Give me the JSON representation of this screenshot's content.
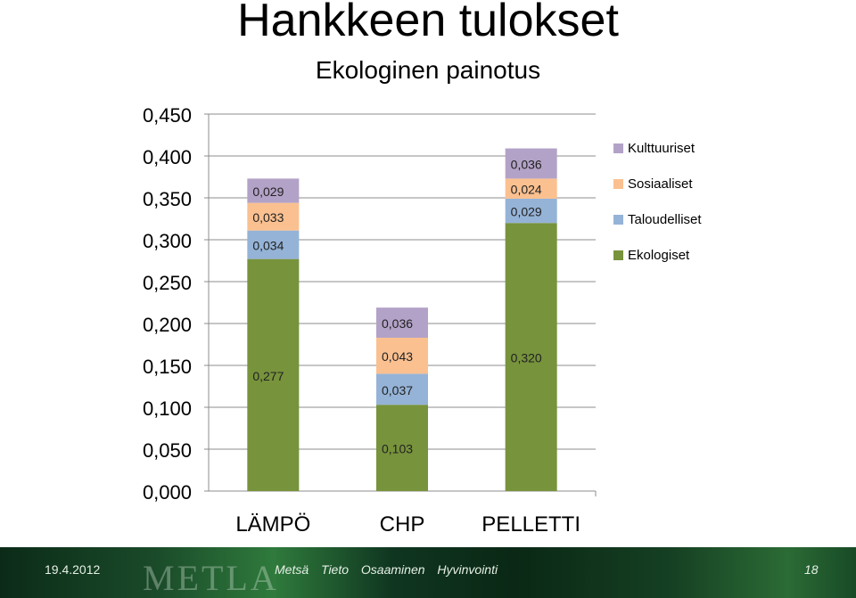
{
  "header": {
    "title": "Hankkeen tulokset",
    "subtitle": "Ekologinen painotus"
  },
  "legend": {
    "items": [
      {
        "label": "Kulttuuriset",
        "color": "#b3a2c7"
      },
      {
        "label": "Sosiaaliset",
        "color": "#fac090"
      },
      {
        "label": "Taloudelliset",
        "color": "#95b3d7"
      },
      {
        "label": "Ekologiset",
        "color": "#77933c"
      }
    ]
  },
  "footer": {
    "date": "19.4.2012",
    "logo": "METLA",
    "nav": [
      "Metsä",
      "Tieto",
      "Osaaminen",
      "Hyvinvointi"
    ],
    "page": "18"
  },
  "chart_data": {
    "type": "bar",
    "stacked": true,
    "title": "Ekologinen painotus",
    "xlabel": "",
    "ylabel": "",
    "ylim": [
      0,
      0.45
    ],
    "ytick_values": [
      0,
      0.05,
      0.1,
      0.15,
      0.2,
      0.25,
      0.3,
      0.35,
      0.4,
      0.45
    ],
    "yticks": [
      "0,000",
      "0,050",
      "0,100",
      "0,150",
      "0,200",
      "0,250",
      "0,300",
      "0,350",
      "0,400",
      "0,450"
    ],
    "grid": true,
    "legend_position": "right",
    "categories": [
      "LÄMPÖ",
      "CHP",
      "PELLETTI"
    ],
    "series": [
      {
        "name": "Ekologiset",
        "color": "#77933c",
        "values": [
          0.277,
          0.103,
          0.32
        ],
        "labels": [
          "0,277",
          "0,103",
          "0,320"
        ]
      },
      {
        "name": "Taloudelliset",
        "color": "#95b3d7",
        "values": [
          0.034,
          0.037,
          0.029
        ],
        "labels": [
          "0,034",
          "0,037",
          "0,029"
        ]
      },
      {
        "name": "Sosiaaliset",
        "color": "#fac090",
        "values": [
          0.033,
          0.043,
          0.024
        ],
        "labels": [
          "0,033",
          "0,043",
          "0,024"
        ]
      },
      {
        "name": "Kulttuuriset",
        "color": "#b3a2c7",
        "values": [
          0.029,
          0.036,
          0.036
        ],
        "labels": [
          "0,029",
          "0,036",
          "0,036"
        ]
      }
    ]
  }
}
